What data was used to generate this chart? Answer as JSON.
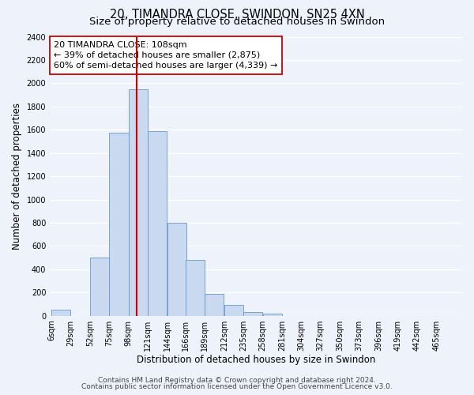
{
  "title": "20, TIMANDRA CLOSE, SWINDON, SN25 4XN",
  "subtitle": "Size of property relative to detached houses in Swindon",
  "xlabel": "Distribution of detached houses by size in Swindon",
  "ylabel": "Number of detached properties",
  "bin_labels": [
    "6sqm",
    "29sqm",
    "52sqm",
    "75sqm",
    "98sqm",
    "121sqm",
    "144sqm",
    "166sqm",
    "189sqm",
    "212sqm",
    "235sqm",
    "258sqm",
    "281sqm",
    "304sqm",
    "327sqm",
    "350sqm",
    "373sqm",
    "396sqm",
    "419sqm",
    "442sqm",
    "465sqm"
  ],
  "bar_heights": [
    50,
    0,
    500,
    1575,
    1950,
    1590,
    800,
    480,
    185,
    90,
    30,
    20,
    0,
    0,
    0,
    0,
    0,
    0,
    0,
    0,
    0
  ],
  "bar_color": "#c9d9f0",
  "bar_edgecolor": "#6699cc",
  "vline_x": 108,
  "vline_color": "#cc0000",
  "annotation_title": "20 TIMANDRA CLOSE: 108sqm",
  "annotation_line1": "← 39% of detached houses are smaller (2,875)",
  "annotation_line2": "60% of semi-detached houses are larger (4,339) →",
  "annotation_box_color": "#ffffff",
  "annotation_box_edgecolor": "#cc0000",
  "ylim": [
    0,
    2400
  ],
  "yticks": [
    0,
    200,
    400,
    600,
    800,
    1000,
    1200,
    1400,
    1600,
    1800,
    2000,
    2200,
    2400
  ],
  "footer1": "Contains HM Land Registry data © Crown copyright and database right 2024.",
  "footer2": "Contains public sector information licensed under the Open Government Licence v3.0.",
  "background_color": "#eef2fb",
  "grid_color": "#ffffff",
  "title_fontsize": 10.5,
  "subtitle_fontsize": 9.5,
  "axis_label_fontsize": 8.5,
  "tick_fontsize": 7,
  "annotation_fontsize": 8,
  "footer_fontsize": 6.5,
  "bin_width": 23
}
